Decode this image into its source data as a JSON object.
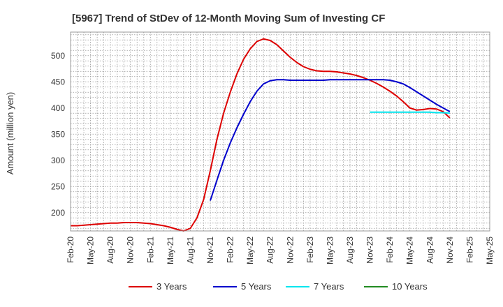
{
  "chart_data": {
    "type": "line",
    "title": "[5967]  Trend of StDev of 12-Month Moving Sum of Investing CF",
    "xlabel": "",
    "ylabel": "Amount (million yen)",
    "ylim": [
      165,
      545
    ],
    "yticks": [
      200,
      250,
      300,
      350,
      400,
      450,
      500
    ],
    "xlim": [
      0,
      63
    ],
    "x_tick_labels": [
      "Feb-20",
      "May-20",
      "Aug-20",
      "Nov-20",
      "Feb-21",
      "May-21",
      "Aug-21",
      "Nov-21",
      "Feb-22",
      "May-22",
      "Aug-22",
      "Nov-22",
      "Feb-23",
      "May-23",
      "Aug-23",
      "Nov-23",
      "Feb-24",
      "May-24",
      "Aug-24",
      "Nov-24",
      "Feb-25",
      "May-25"
    ],
    "grid": true,
    "legend_position": "bottom",
    "series": [
      {
        "name": "3 Years",
        "color": "#dd0000",
        "x": [
          0,
          1,
          2,
          3,
          4,
          5,
          6,
          7,
          8,
          9,
          10,
          11,
          12,
          13,
          14,
          15,
          16,
          17,
          18,
          19,
          20,
          21,
          22,
          23,
          24,
          25,
          26,
          27,
          28,
          29,
          30,
          31,
          32,
          33,
          34,
          35,
          36,
          37,
          38,
          39,
          40,
          41,
          42,
          43,
          44,
          45,
          46,
          47,
          48,
          49,
          50,
          51,
          52,
          53,
          54,
          55,
          56,
          57
        ],
        "values": [
          175,
          175,
          176,
          177,
          178,
          179,
          180,
          180,
          181,
          181,
          181,
          180,
          179,
          177,
          175,
          172,
          168,
          165,
          170,
          190,
          225,
          280,
          340,
          390,
          430,
          465,
          493,
          513,
          527,
          532,
          529,
          521,
          509,
          497,
          487,
          479,
          474,
          471,
          470,
          470,
          469,
          467,
          465,
          462,
          458,
          453,
          447,
          440,
          432,
          423,
          412,
          400,
          396,
          397,
          399,
          398,
          393,
          381
        ]
      },
      {
        "name": "5 Years",
        "color": "#0000cc",
        "x": [
          21,
          22,
          23,
          24,
          25,
          26,
          27,
          28,
          29,
          30,
          31,
          32,
          33,
          34,
          35,
          36,
          37,
          38,
          39,
          40,
          41,
          42,
          43,
          44,
          45,
          46,
          47,
          48,
          49,
          50,
          51,
          52,
          53,
          54,
          55,
          56,
          57
        ],
        "values": [
          223,
          262,
          300,
          333,
          362,
          388,
          412,
          432,
          446,
          452,
          454,
          454,
          453,
          453,
          453,
          453,
          453,
          453,
          454,
          454,
          454,
          454,
          454,
          454,
          454,
          454,
          454,
          453,
          450,
          446,
          439,
          431,
          423,
          415,
          407,
          400,
          393
        ]
      },
      {
        "name": "7 Years",
        "color": "#00e5ee",
        "x": [
          45,
          46,
          47,
          48,
          49,
          50,
          51,
          52,
          53,
          54,
          55,
          56,
          57
        ],
        "values": [
          392,
          392,
          392,
          392,
          392,
          392,
          392,
          392,
          392,
          392,
          391,
          391,
          390
        ]
      },
      {
        "name": "10 Years",
        "color": "#228b22",
        "x": [],
        "values": []
      }
    ]
  }
}
